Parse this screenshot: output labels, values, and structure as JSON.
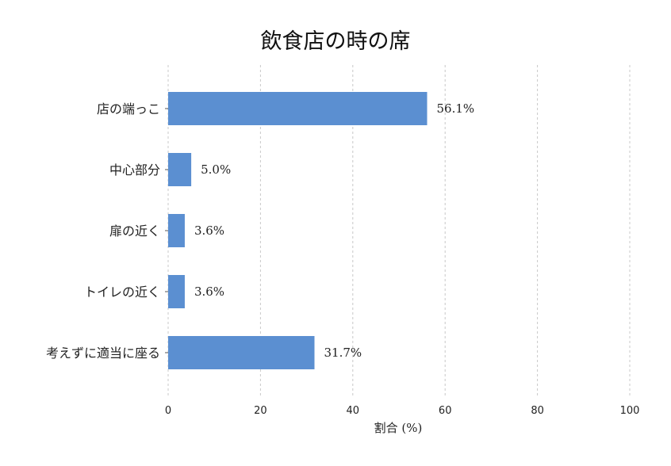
{
  "chart_data": {
    "type": "bar",
    "orientation": "horizontal",
    "title": "飲食店の時の席",
    "xlabel": "割合 (%)",
    "ylabel": "",
    "xlim": [
      0,
      100
    ],
    "xticks": [
      0,
      20,
      40,
      60,
      80,
      100
    ],
    "categories": [
      "店の端っこ",
      "中心部分",
      "扉の近く",
      "トイレの近く",
      "考えずに適当に座る"
    ],
    "values": [
      56.1,
      5.0,
      3.6,
      3.6,
      31.7
    ],
    "value_labels": [
      "56.1%",
      "5.0%",
      "3.6%",
      "3.6%",
      "31.7%"
    ],
    "grid": true,
    "bar_color": "#5b8fd1"
  }
}
